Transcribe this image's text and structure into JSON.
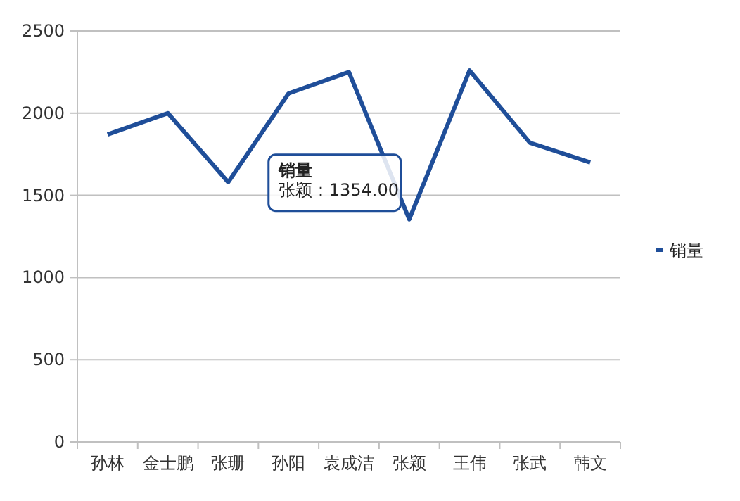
{
  "chart_data": {
    "type": "line",
    "categories": [
      "孙林",
      "金士鹏",
      "张珊",
      "孙阳",
      "袁成洁",
      "张颖",
      "王伟",
      "张武",
      "韩文"
    ],
    "series": [
      {
        "name": "销量",
        "color": "#1f4e99",
        "values": [
          1870,
          2000,
          1580,
          2120,
          2250,
          1354,
          2260,
          1820,
          1700
        ]
      }
    ],
    "ylim": [
      0,
      2500
    ],
    "yticks": [
      0,
      500,
      1000,
      1500,
      2000,
      2500
    ],
    "grid": "y",
    "legend": "right",
    "marker": "none",
    "annotations": [
      "销量",
      {
        "text": "张颖：1354.00",
        "x": "张颖",
        "y": 1354
      }
    ]
  }
}
